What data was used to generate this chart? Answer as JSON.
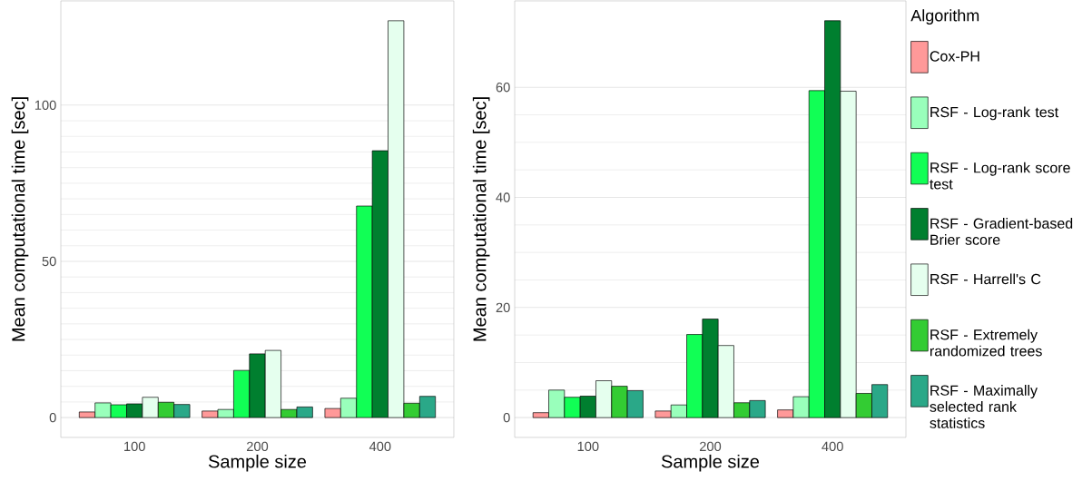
{
  "chart_data": [
    {
      "type": "bar",
      "xlabel": "Sample size",
      "ylabel": "Mean computational time [sec]",
      "categories": [
        "100",
        "200",
        "400"
      ],
      "ylim": [
        -6.35,
        133.35
      ],
      "yticks": [
        0,
        50,
        100
      ],
      "grid": "y",
      "legend": false,
      "series": [
        {
          "color": "#ff9999",
          "values": [
            1.8,
            2.1,
            2.9
          ]
        },
        {
          "color": "#99ffbb",
          "values": [
            4.7,
            2.6,
            6.2
          ]
        },
        {
          "color": "#11ff55",
          "values": [
            4.1,
            15.1,
            67.7
          ]
        },
        {
          "color": "#007f2f",
          "values": [
            4.4,
            20.4,
            85.4
          ]
        },
        {
          "color": "#e5ffee",
          "values": [
            6.5,
            21.5,
            127.0
          ]
        },
        {
          "color": "#33cc33",
          "values": [
            4.9,
            2.6,
            4.6
          ]
        },
        {
          "color": "#2aa888",
          "values": [
            4.2,
            3.4,
            6.8
          ]
        }
      ]
    },
    {
      "type": "bar",
      "xlabel": "Sample size",
      "ylabel": "Mean computational time [sec]",
      "categories": [
        "100",
        "200",
        "400"
      ],
      "ylim": [
        -3.6,
        75.7
      ],
      "yticks": [
        0,
        20,
        40,
        60
      ],
      "grid": "y",
      "legend": "right",
      "legend_title": "Algorithm",
      "series": [
        {
          "name": "Cox-PH",
          "color": "#ff9999",
          "values": [
            0.9,
            1.2,
            1.4
          ]
        },
        {
          "name": "RSF - Log-rank test",
          "color": "#99ffbb",
          "values": [
            5.0,
            2.3,
            3.8
          ]
        },
        {
          "name": "RSF - Log-rank score test",
          "color": "#11ff55",
          "values": [
            3.7,
            15.1,
            59.4
          ]
        },
        {
          "name": "RSF - Gradient-based Brier score",
          "color": "#007f2f",
          "values": [
            3.9,
            17.9,
            72.1
          ]
        },
        {
          "name": "RSF - Harrell's C",
          "color": "#e5ffee",
          "values": [
            6.7,
            13.1,
            59.3
          ]
        },
        {
          "name": "RSF - Extremely randomized trees",
          "color": "#33cc33",
          "values": [
            5.7,
            2.7,
            4.4
          ]
        },
        {
          "name": "RSF - Maximally selected rank statistics",
          "color": "#2aa888",
          "values": [
            4.9,
            3.1,
            6.0
          ]
        }
      ]
    }
  ]
}
